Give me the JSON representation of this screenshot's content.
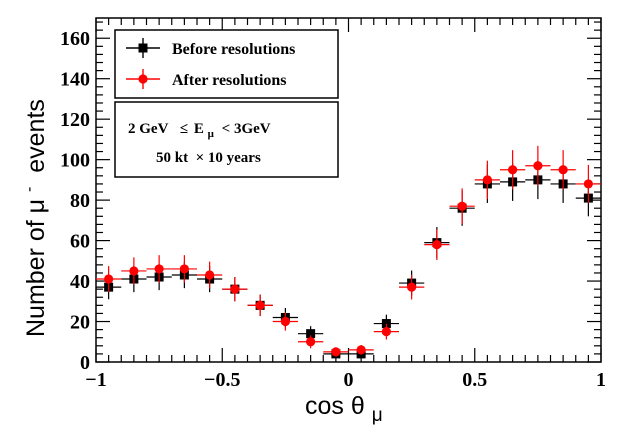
{
  "chart_data": {
    "type": "scatter",
    "xlabel": "cos θ",
    "xlabel_sub": "μ",
    "ylabel": "Number of μ",
    "ylabel_sup": "-",
    "ylabel_tail": " events",
    "xlim": [
      -1,
      1
    ],
    "ylim": [
      0,
      170
    ],
    "x_ticks": [
      -1,
      -0.5,
      0,
      0.5,
      1
    ],
    "x_tick_labels": [
      "−1",
      "−0.5",
      "0",
      "0.5",
      "1"
    ],
    "y_ticks": [
      0,
      20,
      40,
      60,
      80,
      100,
      120,
      140,
      160
    ],
    "y_tick_labels": [
      "0",
      "20",
      "40",
      "60",
      "80",
      "100",
      "120",
      "140",
      "160"
    ],
    "x": [
      -0.95,
      -0.85,
      -0.75,
      -0.65,
      -0.55,
      -0.45,
      -0.35,
      -0.25,
      -0.15,
      -0.05,
      0.05,
      0.15,
      0.25,
      0.35,
      0.45,
      0.55,
      0.65,
      0.75,
      0.85,
      0.95
    ],
    "x_half_width": 0.05,
    "series": [
      {
        "name": "Before resolutions",
        "color": "#000000",
        "marker": "square",
        "values": [
          37,
          41,
          42,
          43,
          41,
          36,
          28,
          22,
          14,
          4,
          4,
          19,
          39,
          59,
          76,
          88,
          89,
          90,
          88,
          81
        ],
        "errors": [
          6,
          6.5,
          6.5,
          6.5,
          6.5,
          6,
          5.3,
          4.7,
          3.7,
          2,
          2,
          4.4,
          6.2,
          7.7,
          8.7,
          9.4,
          9.4,
          9.5,
          9.4,
          9
        ]
      },
      {
        "name": "After resolutions",
        "color": "#ff0000",
        "marker": "circle",
        "values": [
          41,
          45,
          46,
          46,
          43,
          36,
          28,
          20,
          10,
          5,
          6,
          15,
          37,
          58,
          77,
          90,
          95,
          97,
          95,
          88
        ],
        "errors": [
          6.4,
          6.7,
          6.8,
          6.8,
          6.6,
          6,
          5.3,
          4.5,
          3.2,
          2.2,
          2.4,
          3.9,
          6.1,
          7.6,
          8.8,
          9.5,
          9.7,
          9.8,
          9.7,
          9.4
        ]
      }
    ],
    "legend": {
      "position": "top-left",
      "entries": [
        "Before resolutions",
        "After resolutions"
      ]
    },
    "annotation": {
      "line1_left": "2 GeV",
      "line1_sym": "≤",
      "line1_var": "E",
      "line1_sub": "μ",
      "line1_right": "< 3GeV",
      "line2": "50 kt  × 10 years"
    }
  }
}
